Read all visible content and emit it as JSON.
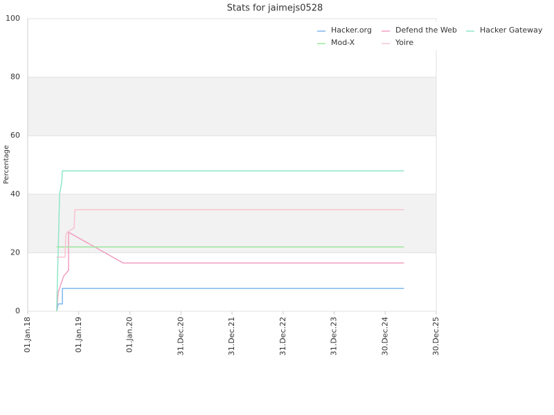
{
  "chart_data": {
    "type": "line",
    "title": "Stats for jaimejs0528",
    "y_label": "Percentage",
    "xlim": [
      "2018-01-01",
      "2025-12-30"
    ],
    "xticks": [
      {
        "value": "2018-01-01",
        "label": "01.Jan.18"
      },
      {
        "value": "2019-01-01",
        "label": "01.Jan.19"
      },
      {
        "value": "2020-01-01",
        "label": "01.Jan.20"
      },
      {
        "value": "2020-12-31",
        "label": "31.Dec.20"
      },
      {
        "value": "2021-12-31",
        "label": "31.Dec.21"
      },
      {
        "value": "2022-12-31",
        "label": "31.Dec.22"
      },
      {
        "value": "2023-12-31",
        "label": "31.Dec.23"
      },
      {
        "value": "2024-12-30",
        "label": "30.Dec.24"
      },
      {
        "value": "2025-12-30",
        "label": "30.Dec.25"
      }
    ],
    "ylim": [
      0,
      100
    ],
    "yticks": [
      0,
      20,
      40,
      60,
      80,
      100
    ],
    "grid": true,
    "legend": "top-right",
    "series": [
      {
        "name": "Hacker.org",
        "color": "#7cb5ec",
        "x": [
          "2018-07-27",
          "2018-08-07",
          "2018-09-06",
          "2018-09-06",
          "2025-05-13"
        ],
        "values": [
          0,
          2.5,
          2.5,
          7.8,
          7.8
        ]
      },
      {
        "name": "Defend the Web",
        "color": "#f19ec2",
        "x": [
          "2018-07-27",
          "2018-08-07",
          "2018-09-15",
          "2018-10-20",
          "2018-10-20",
          "2019-11-14",
          "2025-05-13"
        ],
        "values": [
          0,
          6.5,
          12,
          14,
          27,
          16.5,
          16.5
        ]
      },
      {
        "name": "Hacker Gateway",
        "color": "#8ee6c8",
        "x": [
          "2018-07-27",
          "2018-08-17",
          "2018-09-01",
          "2018-09-06",
          "2025-05-13"
        ],
        "values": [
          0,
          40,
          44,
          48,
          48
        ]
      },
      {
        "name": "Mod-X",
        "color": "#9be59b",
        "x": [
          "2018-07-27",
          "2025-05-13"
        ],
        "values": [
          22,
          22
        ]
      },
      {
        "name": "Yoire",
        "color": "#f8c3cf",
        "x": [
          "2018-07-27",
          "2018-09-25",
          "2018-09-30",
          "2018-10-10",
          "2018-11-29",
          "2018-12-04",
          "2025-05-13"
        ],
        "values": [
          18.5,
          18.5,
          26,
          27,
          28.5,
          34.7,
          34.7
        ]
      }
    ]
  }
}
